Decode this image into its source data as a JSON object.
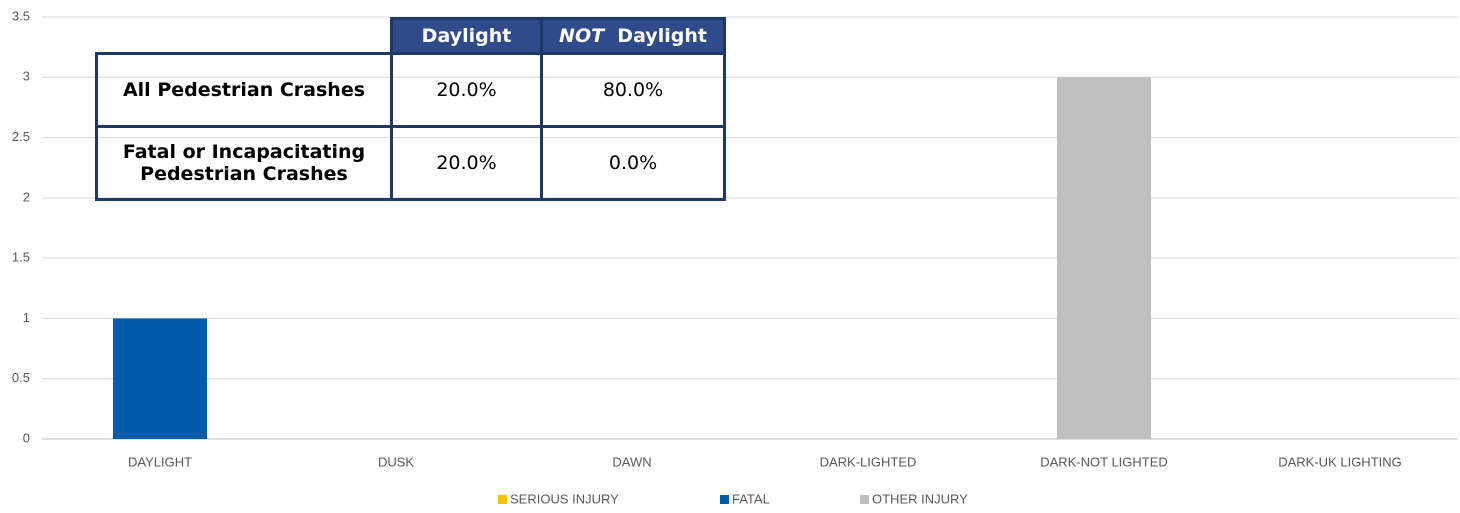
{
  "chart_data": {
    "type": "bar",
    "stacked": true,
    "categories": [
      "DAYLIGHT",
      "DUSK",
      "DAWN",
      "DARK-LIGHTED",
      "DARK-NOT LIGHTED",
      "DARK-UK LIGHTING"
    ],
    "series": [
      {
        "name": "SERIOUS INJURY",
        "color": "#ffc000",
        "values": [
          0,
          0,
          0,
          0,
          0,
          0
        ]
      },
      {
        "name": "FATAL",
        "color": "#005bac",
        "values": [
          1,
          0,
          0,
          0,
          0,
          0
        ]
      },
      {
        "name": "OTHER INJURY",
        "color": "#bfbfbf",
        "values": [
          0,
          0,
          0,
          0,
          3,
          0
        ]
      }
    ],
    "ylim": [
      0,
      3.5
    ],
    "yticks": [
      0,
      0.5,
      1,
      1.5,
      2,
      2.5,
      3,
      3.5
    ],
    "grid": true,
    "legend": "bottom"
  },
  "table": {
    "columns": [
      {
        "text": "Daylight"
      },
      {
        "italic": "NOT",
        "text": "Daylight"
      }
    ],
    "rows": [
      {
        "label": "All Pedestrian Crashes",
        "cells": [
          "20.0%",
          "80.0%"
        ]
      },
      {
        "label": "Fatal or Incapacitating Pedestrian Crashes",
        "cells": [
          "20.0%",
          "0.0%"
        ]
      }
    ]
  }
}
